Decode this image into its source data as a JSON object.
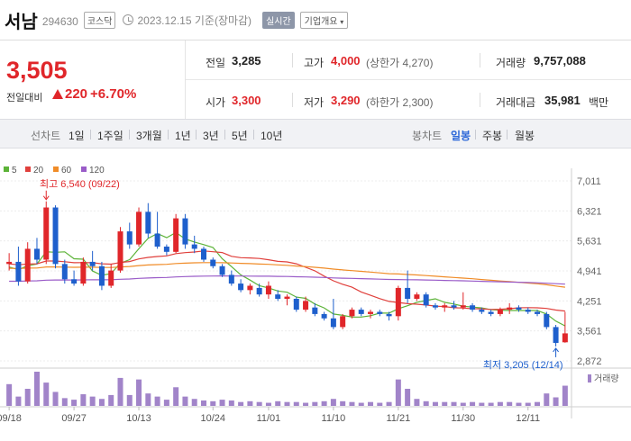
{
  "header": {
    "stock_name": "서남",
    "stock_code": "294630",
    "market": "코스닥",
    "date_text": "2023.12.15 기준(장마감)",
    "realtime_label": "실시간",
    "company_label": "기업개요",
    "company_icon": "dropdown-caret-icon"
  },
  "quote": {
    "price": "3,505",
    "change_label": "전일대비",
    "change_amount": "220",
    "change_pct": "+6.70%",
    "prev_close_label": "전일",
    "prev_close": "3,285",
    "high_label": "고가",
    "high": "4,000",
    "upper_limit": "(상한가 4,270)",
    "volume_label": "거래량",
    "volume": "9,757,088",
    "open_label": "시가",
    "open": "3,300",
    "low_label": "저가",
    "low": "3,290",
    "lower_limit": "(하한가 2,300)",
    "amount_label": "거래대금",
    "amount": "35,981",
    "amount_unit": "백만",
    "colors": {
      "up": "#e0262a",
      "down": "#1e5fcc"
    }
  },
  "periods": {
    "line_label": "선차트",
    "line_items": [
      "1일",
      "1주일",
      "3개월",
      "1년",
      "3년",
      "5년",
      "10년"
    ],
    "candle_label": "봉차트",
    "candle_items": [
      "일봉",
      "주봉",
      "월봉"
    ],
    "active": "일봉"
  },
  "chart_data": {
    "type": "candlestick",
    "legend": [
      {
        "name": "5",
        "color": "#5cb338"
      },
      {
        "name": "20",
        "color": "#e0403c"
      },
      {
        "name": "60",
        "color": "#f08c28"
      },
      {
        "name": "120",
        "color": "#9a5cc8"
      }
    ],
    "y_ticks": [
      "7,011",
      "6,321",
      "5,631",
      "4,941",
      "4,251",
      "3,561",
      "2,872"
    ],
    "y_range": [
      2872,
      7011
    ],
    "x_labels": [
      "09/18",
      "09/27",
      "10/13",
      "10/24",
      "11/01",
      "11/10",
      "11/21",
      "11/30",
      "12/11"
    ],
    "x_label_index": [
      0,
      7,
      14,
      22,
      28,
      35,
      42,
      49,
      56
    ],
    "high_annotation": "최고 6,540 (09/22)",
    "high_value": 6540,
    "high_index": 4,
    "low_annotation": "최저 3,205 (12/14)",
    "low_value": 3205,
    "low_index": 59,
    "volume_label": "거래량",
    "candles": [
      [
        5100,
        5350,
        4950,
        5150
      ],
      [
        5150,
        5500,
        4600,
        4700
      ],
      [
        4700,
        5600,
        4650,
        5450
      ],
      [
        5450,
        5700,
        5100,
        5200
      ],
      [
        5200,
        6540,
        5100,
        6400
      ],
      [
        6400,
        6450,
        5000,
        5100
      ],
      [
        5100,
        5200,
        4650,
        4750
      ],
      [
        4750,
        4950,
        4600,
        4650
      ],
      [
        4650,
        5250,
        4600,
        5150
      ],
      [
        5150,
        5400,
        4950,
        5050
      ],
      [
        5050,
        5150,
        4500,
        4600
      ],
      [
        4600,
        5100,
        4550,
        4950
      ],
      [
        4950,
        5950,
        4900,
        5850
      ],
      [
        5850,
        6050,
        5450,
        5550
      ],
      [
        5550,
        6400,
        5500,
        6300
      ],
      [
        6300,
        6500,
        5700,
        5800
      ],
      [
        5800,
        6300,
        5450,
        5500
      ],
      [
        5500,
        5550,
        5300,
        5380
      ],
      [
        5380,
        6250,
        5350,
        6150
      ],
      [
        6150,
        6250,
        5450,
        5550
      ],
      [
        5550,
        5750,
        5350,
        5450
      ],
      [
        5450,
        5500,
        5150,
        5200
      ],
      [
        5200,
        5250,
        5000,
        5050
      ],
      [
        5050,
        5100,
        4800,
        4850
      ],
      [
        4850,
        4950,
        4600,
        4650
      ],
      [
        4650,
        4750,
        4450,
        4500
      ],
      [
        4500,
        4650,
        4400,
        4600
      ],
      [
        4550,
        4650,
        4350,
        4400
      ],
      [
        4400,
        4700,
        4300,
        4600
      ],
      [
        4400,
        4500,
        4250,
        4300
      ],
      [
        4300,
        4400,
        4150,
        4350
      ],
      [
        4300,
        4350,
        4000,
        4050
      ],
      [
        4050,
        4350,
        4000,
        4250
      ],
      [
        4100,
        4200,
        3900,
        3950
      ],
      [
        3950,
        4000,
        3800,
        3850
      ],
      [
        3850,
        4300,
        3600,
        3650
      ],
      [
        3650,
        3950,
        3600,
        3900
      ],
      [
        3900,
        4100,
        3850,
        4050
      ],
      [
        4050,
        4100,
        3900,
        3950
      ],
      [
        3950,
        4050,
        3850,
        4000
      ],
      [
        4000,
        4050,
        3900,
        3950
      ],
      [
        3950,
        4000,
        3800,
        3900
      ],
      [
        3900,
        4600,
        3800,
        4550
      ],
      [
        4550,
        4950,
        4200,
        4300
      ],
      [
        4300,
        4450,
        4250,
        4400
      ],
      [
        4400,
        4450,
        4100,
        4150
      ],
      [
        4150,
        4200,
        4050,
        4100
      ],
      [
        4100,
        4200,
        4000,
        4150
      ],
      [
        4150,
        4250,
        4050,
        4100
      ],
      [
        4100,
        4450,
        4050,
        4150
      ],
      [
        4150,
        4200,
        4000,
        4050
      ],
      [
        4050,
        4100,
        3950,
        4000
      ],
      [
        4000,
        4050,
        3900,
        3950
      ],
      [
        3950,
        4100,
        3900,
        4050
      ],
      [
        4050,
        4200,
        3950,
        4100
      ],
      [
        4100,
        4150,
        4000,
        4050
      ],
      [
        4050,
        4100,
        3950,
        4000
      ],
      [
        4000,
        4050,
        3900,
        3950
      ],
      [
        3950,
        4000,
        3600,
        3650
      ],
      [
        3650,
        3700,
        3205,
        3285
      ],
      [
        3300,
        4000,
        3290,
        3505
      ]
    ],
    "volume": [
      28,
      12,
      22,
      44,
      30,
      18,
      10,
      8,
      15,
      12,
      9,
      14,
      36,
      14,
      34,
      16,
      12,
      8,
      24,
      12,
      9,
      7,
      6,
      8,
      7,
      5,
      6,
      5,
      4,
      6,
      5,
      5,
      4,
      5,
      6,
      9,
      6,
      5,
      4,
      5,
      4,
      5,
      34,
      22,
      9,
      6,
      5,
      5,
      5,
      4,
      5,
      4,
      4,
      5,
      5,
      4,
      4,
      5,
      16,
      11,
      26
    ],
    "volume_max": 44
  }
}
